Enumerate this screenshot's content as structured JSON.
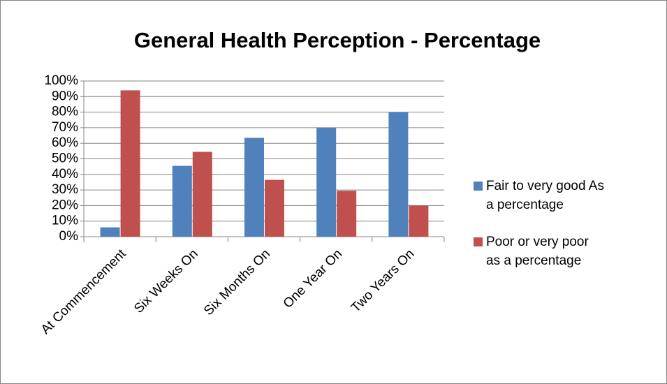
{
  "chart_data": {
    "type": "bar",
    "title": "General Health Perception - Percentage",
    "categories": [
      "At Commencement",
      "Six Weeks On",
      "Six Months On",
      "One Year On",
      "Two Years On"
    ],
    "series": [
      {
        "name": "Fair to very good As a percentage",
        "color": "#4f81bd",
        "values": [
          6,
          45.5,
          63.5,
          70,
          80
        ]
      },
      {
        "name": "Poor or very poor as a percentage",
        "color": "#c0504d",
        "values": [
          94,
          54.5,
          36.5,
          29.5,
          20
        ]
      }
    ],
    "ylim": [
      0,
      100
    ],
    "yticks": [
      {
        "value": 0,
        "label": "0%"
      },
      {
        "value": 10,
        "label": "10%"
      },
      {
        "value": 20,
        "label": "20%"
      },
      {
        "value": 30,
        "label": "30%"
      },
      {
        "value": 40,
        "label": "40%"
      },
      {
        "value": 50,
        "label": "50%"
      },
      {
        "value": 60,
        "label": "60%"
      },
      {
        "value": 70,
        "label": "70%"
      },
      {
        "value": 80,
        "label": "80%"
      },
      {
        "value": 90,
        "label": "90%"
      },
      {
        "value": 100,
        "label": "100%"
      }
    ],
    "grid": true,
    "legend": "right"
  }
}
